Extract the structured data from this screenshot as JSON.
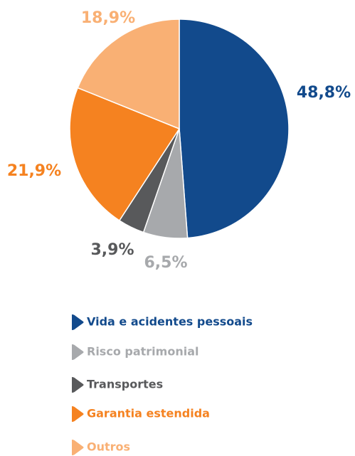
{
  "chart_data": {
    "type": "pie",
    "categories": [
      "Vida e acidentes pessoais",
      "Risco patrimonial",
      "Transportes",
      "Garantia estendida",
      "Outros"
    ],
    "values": [
      48.8,
      6.5,
      3.9,
      21.9,
      18.9
    ],
    "value_labels": [
      "48,8%",
      "6,5%",
      "3,9%",
      "21,9%",
      "18,9%"
    ],
    "colors": [
      "#124a8c",
      "#a7a9ac",
      "#58595b",
      "#f58220",
      "#f9b074"
    ]
  }
}
